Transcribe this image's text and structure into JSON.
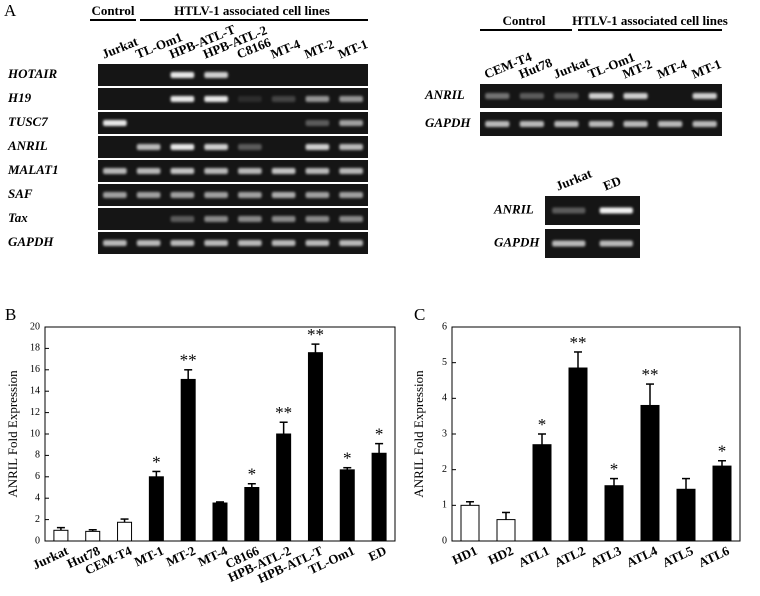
{
  "figure": {
    "panel_a": {
      "letter": "A",
      "left_gel": {
        "control_header": "Control",
        "htlv_header": "HTLV-1 associated cell lines",
        "lanes": [
          "Jurkat",
          "TL-Om1",
          "HPB-ATL-T",
          "HPB-ATL-2",
          "C8166",
          "MT-4",
          "MT-2",
          "MT-1"
        ],
        "rows": [
          "HOTAIR",
          "H19",
          "TUSC7",
          "ANRIL",
          "MALAT1",
          "SAF",
          "Tax",
          "GAPDH"
        ]
      },
      "right_gel": {
        "control_header": "Control",
        "htlv_header": "HTLV-1 associated cell lines",
        "lanes": [
          "CEM-T4",
          "Hut78",
          "Jurkat",
          "TL-Om1",
          "MT-2",
          "MT-4",
          "MT-1"
        ],
        "rows": [
          "ANRIL",
          "GAPDH"
        ]
      },
      "small_gel": {
        "lanes": [
          "Jurkat",
          "ED"
        ],
        "rows": [
          "ANRIL",
          "GAPDH"
        ]
      }
    }
  },
  "chart_data": [
    {
      "type": "bar",
      "panel": "B",
      "ylabel": "ANRIL Fold Expression",
      "categories": [
        "Jurkat",
        "Hut78",
        "CEM-T4",
        "MT-1",
        "MT-2",
        "MT-4",
        "C8166",
        "HPB-ATL-2",
        "HPB-ATL-T",
        "TL-Om1",
        "ED"
      ],
      "values": [
        1.0,
        0.9,
        1.75,
        6.0,
        15.1,
        3.55,
        5.0,
        10.0,
        17.6,
        6.65,
        8.2
      ],
      "errors": [
        0.25,
        0.15,
        0.3,
        0.5,
        0.9,
        0.1,
        0.35,
        1.1,
        0.8,
        0.2,
        0.9
      ],
      "annotations": [
        null,
        null,
        null,
        "*",
        "**",
        null,
        "*",
        "**",
        "**",
        "*",
        "*"
      ],
      "colors": [
        "#ffffff",
        "#ffffff",
        "#ffffff",
        "#000000",
        "#000000",
        "#000000",
        "#000000",
        "#000000",
        "#000000",
        "#000000",
        "#000000"
      ],
      "ylim": [
        0,
        20
      ],
      "yticks": [
        0,
        2,
        4,
        6,
        8,
        10,
        12,
        14,
        16,
        18,
        20
      ]
    },
    {
      "type": "bar",
      "panel": "C",
      "ylabel": "ANRIL Fold Expression",
      "categories": [
        "HD1",
        "HD2",
        "ATL1",
        "ATL2",
        "ATL3",
        "ATL4",
        "ATL5",
        "ATL6"
      ],
      "values": [
        1.0,
        0.6,
        2.7,
        4.85,
        1.55,
        3.8,
        1.45,
        2.1
      ],
      "errors": [
        0.1,
        0.2,
        0.3,
        0.45,
        0.2,
        0.6,
        0.3,
        0.15
      ],
      "annotations": [
        null,
        null,
        "*",
        "**",
        "*",
        "**",
        null,
        "*"
      ],
      "colors": [
        "#ffffff",
        "#ffffff",
        "#000000",
        "#000000",
        "#000000",
        "#000000",
        "#000000",
        "#000000"
      ],
      "ylim": [
        0,
        6
      ],
      "yticks": [
        0,
        1,
        2,
        3,
        4,
        5,
        6
      ]
    }
  ]
}
